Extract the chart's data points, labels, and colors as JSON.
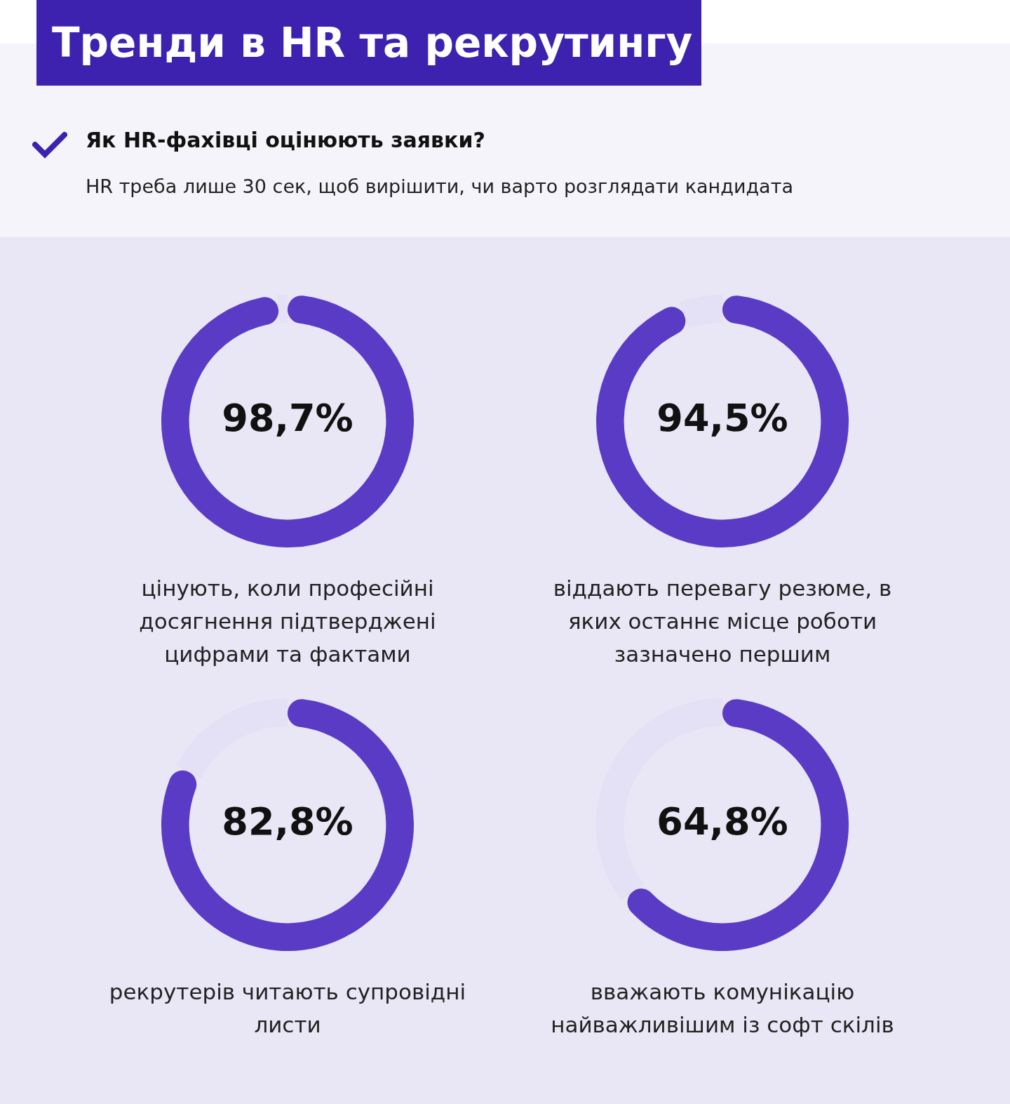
{
  "chart_data": [
    {
      "type": "other",
      "title": "Тренди в HR та рекрутингу",
      "subtitle": "Як HR-фахівці оцінюють заявки?",
      "annotations": [
        "HR треба лише 30 сек, щоб вирішити, чи варто розглядати кандидата"
      ]
    },
    {
      "type": "donut",
      "categories": [
        null,
        null
      ],
      "values": [
        98.7,
        1.3
      ],
      "colors": [
        "#5a3bc6",
        "#e4e0f5"
      ],
      "value_labels": [
        "98,7%",
        null
      ],
      "annotations": [
        "цінують, коли професійні досягнення підтверджені цифрами та фактами"
      ]
    },
    {
      "type": "donut",
      "categories": [
        null,
        null
      ],
      "values": [
        94.5,
        5.5
      ],
      "colors": [
        "#5a3bc6",
        "#e4e0f5"
      ],
      "value_labels": [
        "94,5%",
        null
      ],
      "annotations": [
        "віддають перевагу резюме, в яких останнє місце роботи зазначено першим"
      ]
    },
    {
      "type": "donut",
      "categories": [
        null,
        null
      ],
      "values": [
        82.8,
        17.2
      ],
      "colors": [
        "#5a3bc6",
        "#e4e0f5"
      ],
      "value_labels": [
        "82,8%",
        null
      ],
      "annotations": [
        "рекрутерів читають супровідні листи"
      ]
    },
    {
      "type": "donut",
      "categories": [
        null,
        null
      ],
      "values": [
        64.8,
        35.2
      ],
      "colors": [
        "#5a3bc6",
        "#e4e0f5"
      ],
      "value_labels": [
        "64,8%",
        null
      ],
      "annotations": [
        "вважають комунікацію найважливішим із софт скілів"
      ]
    }
  ]
}
